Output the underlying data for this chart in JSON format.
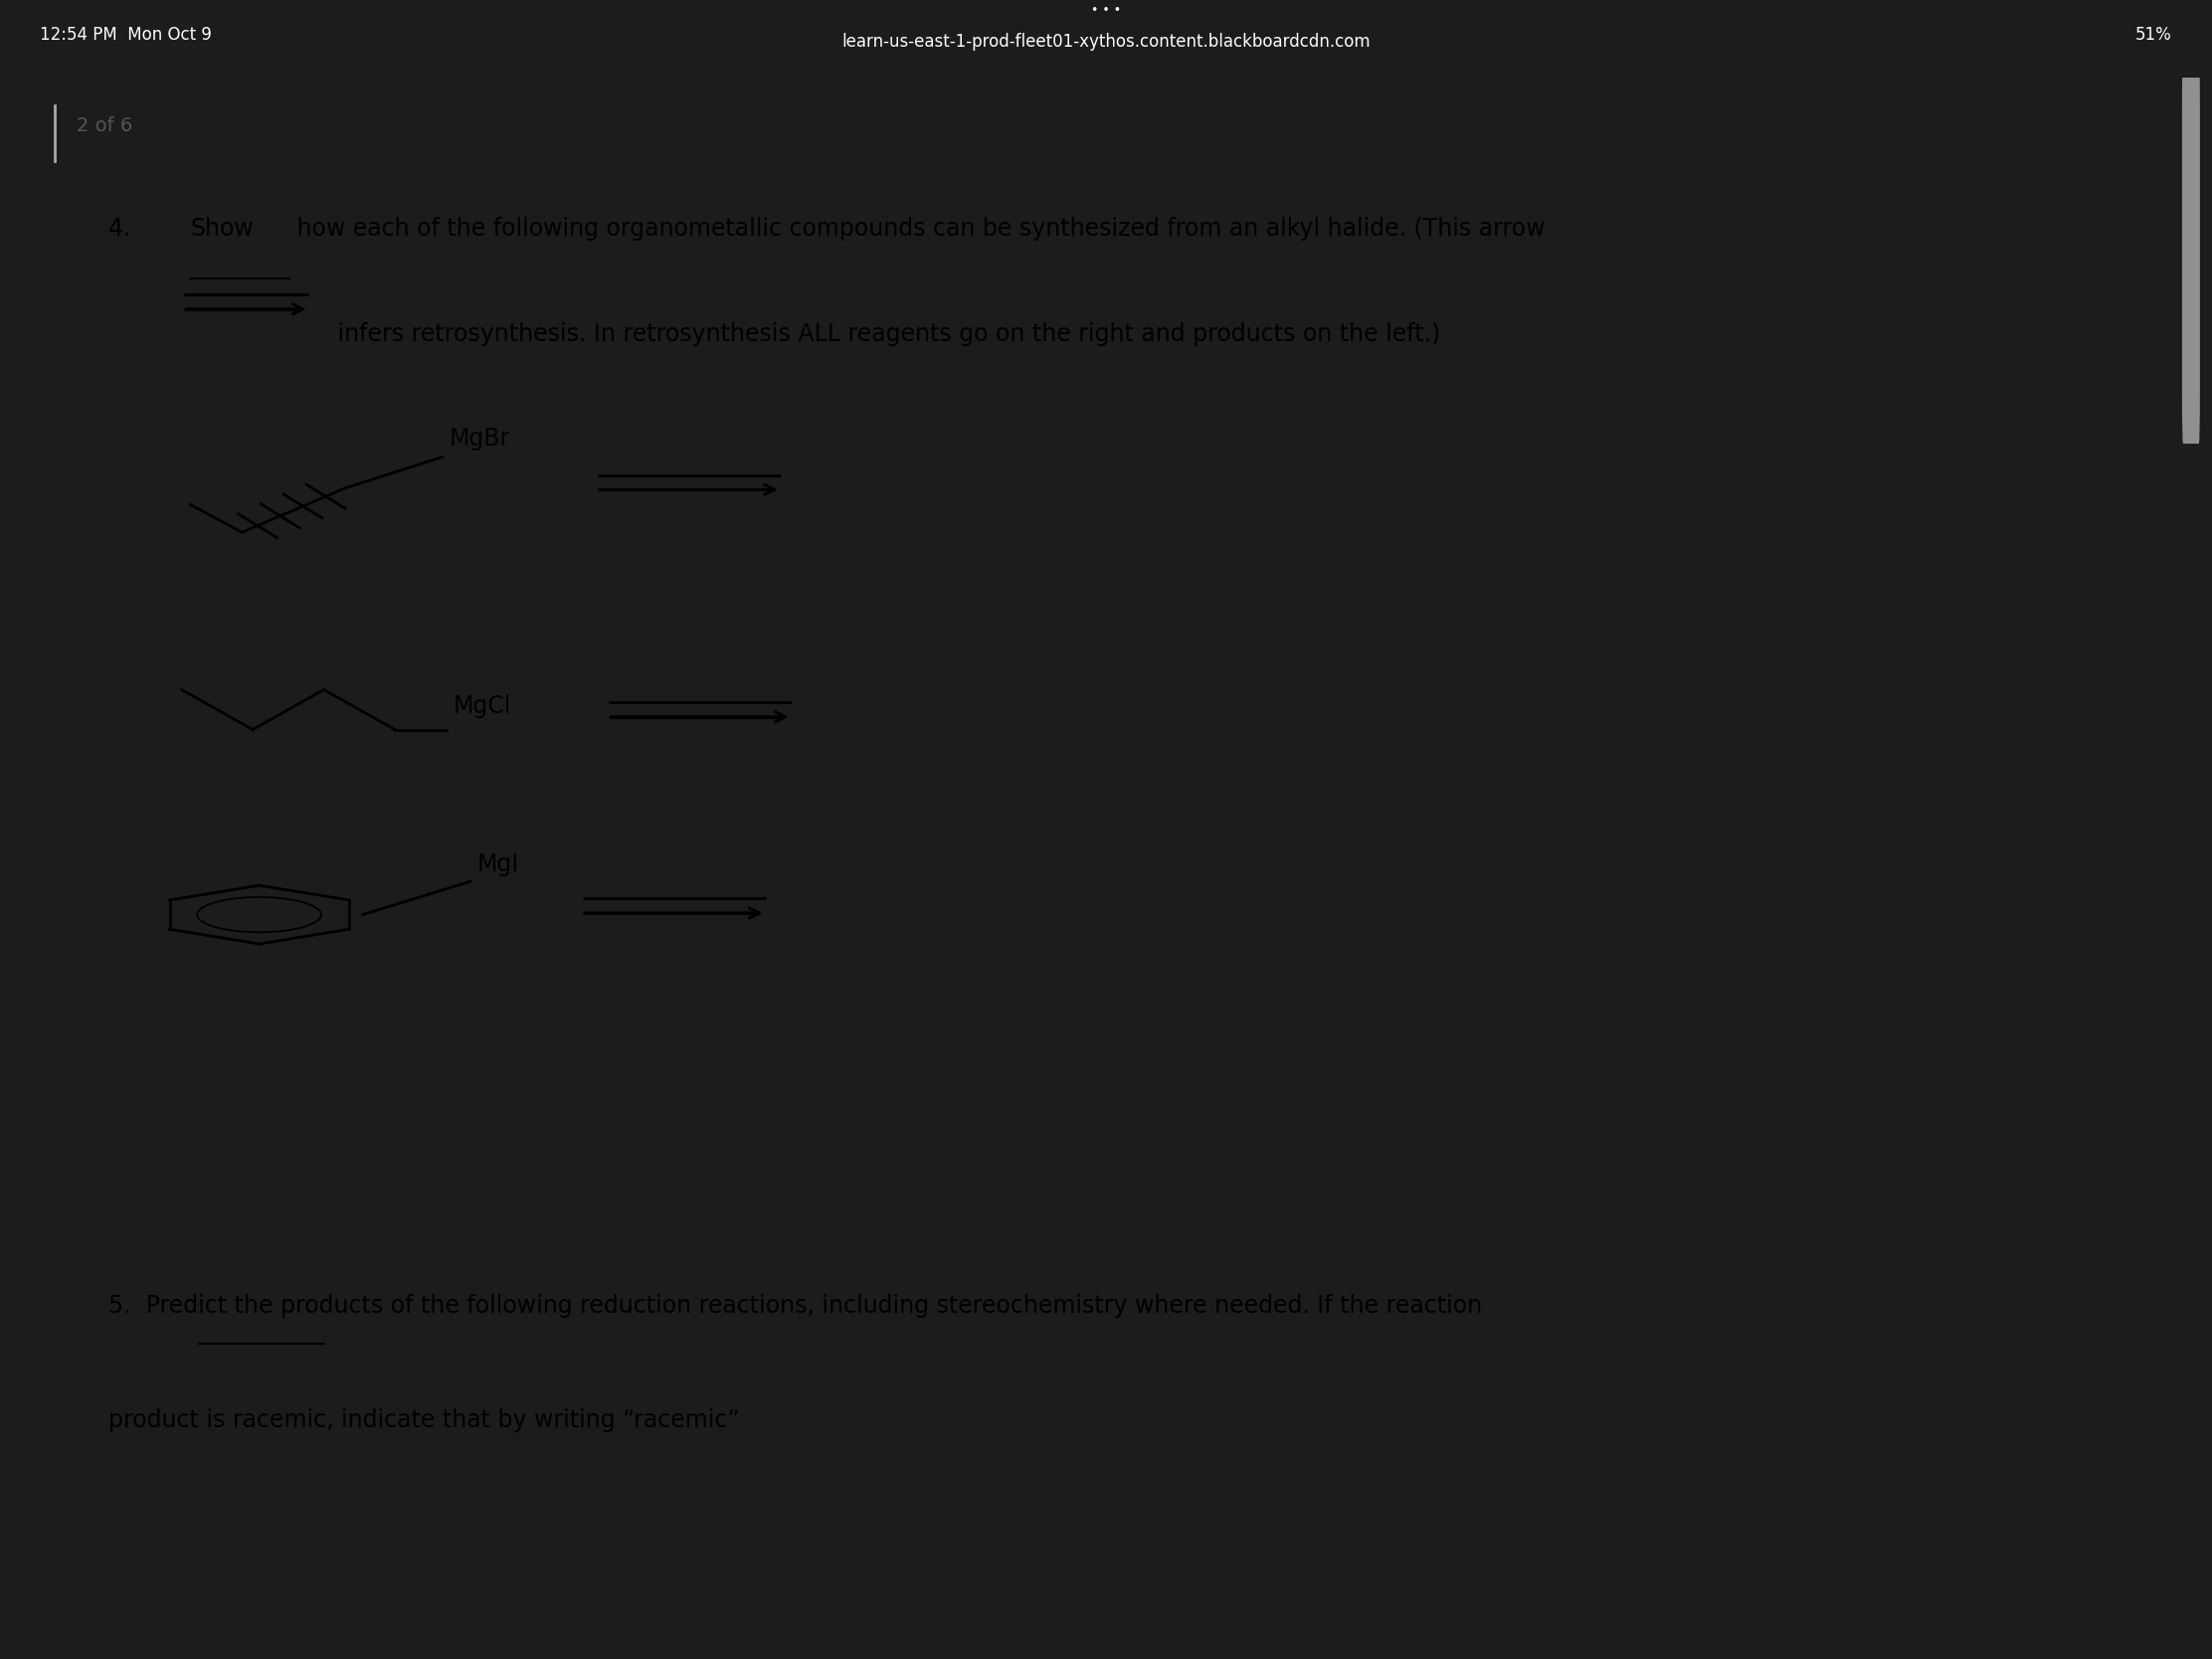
{
  "bg_color": "#1c1c1c",
  "panel1_color": "#ffffff",
  "panel2_color": "#f2f2f2",
  "status_bar_text": "learn-us-east-1-prod-fleet01-xythos.content.blackboardcdn.com",
  "time_text": "12:54 PM  Mon Oct 9",
  "battery_text": "51%",
  "page_text": "2 of 6",
  "label1": "MgBr",
  "label2": "MgCl",
  "label3": "MgI",
  "q4_prefix": "4.  ",
  "q4_show": "Show",
  "q4_rest": " how each of the following organometallic compounds can be synthesized from an alkyl halide. (This arrow",
  "q4_line2": " infers retrosynthesis. In retrosynthesis ALL reagents go on the right and products on the left.)",
  "q5_line1": "5.  Predict the products of the following reduction reactions, including stereochemistry where needed. If the reaction",
  "q5_line2": "product is racemic, indicate that by writing “racemic”",
  "text_color": "#000000",
  "font_size_body": 17
}
